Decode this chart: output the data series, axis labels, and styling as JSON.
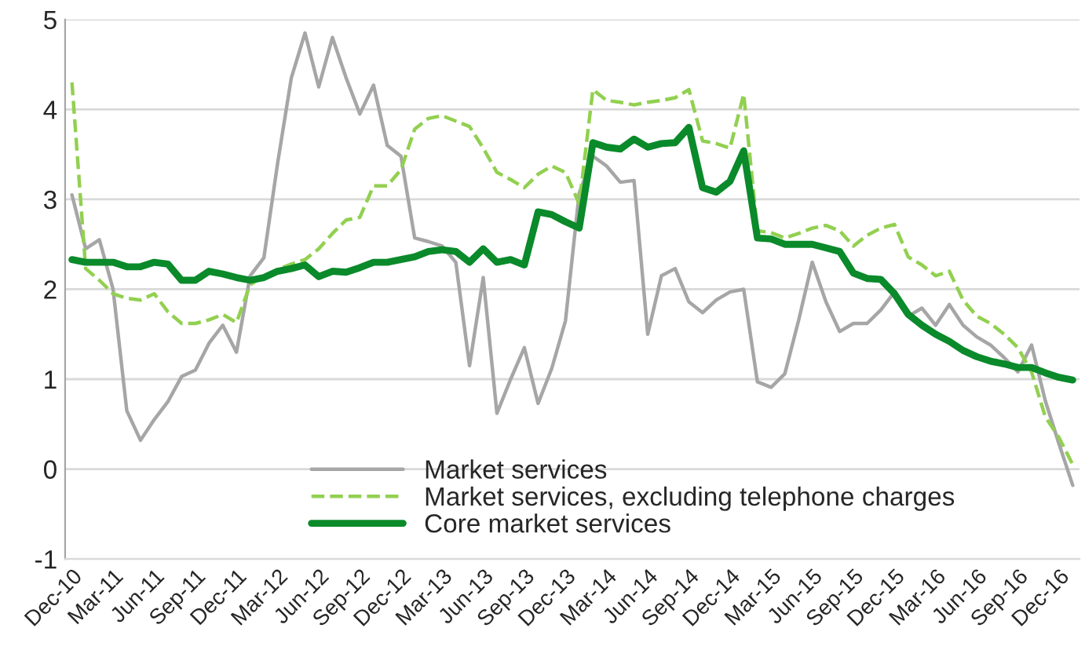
{
  "chart_data": {
    "type": "line",
    "categories": [
      "Dec-10",
      null,
      null,
      "Mar-11",
      null,
      null,
      "Jun-11",
      null,
      null,
      "Sep-11",
      null,
      null,
      "Dec-11",
      null,
      null,
      "Mar-12",
      null,
      null,
      "Jun-12",
      null,
      null,
      "Sep-12",
      null,
      null,
      "Dec-12",
      null,
      null,
      "Mar-13",
      null,
      null,
      "Jun-13",
      null,
      null,
      "Sep-13",
      null,
      null,
      "Dec-13",
      null,
      null,
      "Mar-14",
      null,
      null,
      "Jun-14",
      null,
      null,
      "Sep-14",
      null,
      null,
      "Dec-14",
      null,
      null,
      "Mar-15",
      null,
      null,
      "Jun-15",
      null,
      null,
      "Sep-15",
      null,
      null,
      "Dec-15",
      null,
      null,
      "Mar-16",
      null,
      null,
      "Jun-16",
      null,
      null,
      "Sep-16",
      null,
      null,
      "Dec-16",
      null
    ],
    "series": [
      {
        "name": "Market services",
        "color": "#a6a6a6",
        "line_style": "solid",
        "values": [
          3.05,
          2.45,
          2.55,
          2.0,
          0.65,
          0.32,
          0.55,
          0.75,
          1.03,
          1.1,
          1.4,
          1.6,
          1.3,
          2.15,
          2.35,
          3.4,
          4.35,
          4.85,
          4.25,
          4.8,
          4.35,
          3.95,
          4.27,
          3.6,
          3.48,
          2.57,
          2.53,
          2.48,
          2.3,
          1.15,
          2.13,
          0.62,
          1.0,
          1.35,
          0.73,
          1.12,
          1.65,
          3.07,
          3.48,
          3.37,
          3.19,
          3.21,
          1.5,
          2.15,
          2.23,
          1.86,
          1.74,
          1.88,
          1.97,
          2.0,
          0.97,
          0.91,
          1.06,
          1.65,
          2.3,
          1.86,
          1.53,
          1.62,
          1.62,
          1.77,
          1.97,
          1.7,
          1.79,
          1.6,
          1.83,
          1.6,
          1.47,
          1.38,
          1.24,
          1.08,
          1.38,
          0.76,
          0.28,
          -0.18
        ]
      },
      {
        "name": "Market services, excluding telephone charges",
        "color": "#92d050",
        "line_style": "dashed",
        "values": [
          4.3,
          2.23,
          2.1,
          1.95,
          1.9,
          1.88,
          1.95,
          1.75,
          1.62,
          1.62,
          1.66,
          1.72,
          1.63,
          2.05,
          2.15,
          2.22,
          2.28,
          2.33,
          2.45,
          2.62,
          2.77,
          2.8,
          3.15,
          3.15,
          3.33,
          3.78,
          3.9,
          3.93,
          3.87,
          3.81,
          3.57,
          3.3,
          3.22,
          3.13,
          3.28,
          3.37,
          3.3,
          2.95,
          4.22,
          4.1,
          4.08,
          4.05,
          4.08,
          4.1,
          4.13,
          4.22,
          3.65,
          3.62,
          3.57,
          4.17,
          2.65,
          2.63,
          2.57,
          2.62,
          2.68,
          2.71,
          2.65,
          2.48,
          2.6,
          2.68,
          2.72,
          2.36,
          2.27,
          2.15,
          2.2,
          1.88,
          1.7,
          1.62,
          1.5,
          1.35,
          1.08,
          0.58,
          0.35,
          0.05
        ]
      },
      {
        "name": "Core market services",
        "color": "#0a8a2a",
        "line_style": "solid",
        "values": [
          2.33,
          2.3,
          2.3,
          2.3,
          2.25,
          2.25,
          2.3,
          2.28,
          2.1,
          2.1,
          2.2,
          2.17,
          2.13,
          2.1,
          2.13,
          2.2,
          2.23,
          2.27,
          2.14,
          2.2,
          2.19,
          2.24,
          2.3,
          2.3,
          2.33,
          2.36,
          2.42,
          2.44,
          2.42,
          2.3,
          2.45,
          2.3,
          2.33,
          2.27,
          2.86,
          2.83,
          2.75,
          2.68,
          3.63,
          3.58,
          3.56,
          3.67,
          3.58,
          3.62,
          3.63,
          3.8,
          3.13,
          3.08,
          3.2,
          3.54,
          2.57,
          2.56,
          2.5,
          2.5,
          2.5,
          2.46,
          2.42,
          2.18,
          2.12,
          2.11,
          1.95,
          1.72,
          1.6,
          1.5,
          1.42,
          1.32,
          1.25,
          1.2,
          1.17,
          1.13,
          1.13,
          1.07,
          1.02,
          0.99
        ]
      }
    ],
    "ylim": [
      -1,
      5
    ],
    "yticks": [
      -1,
      0,
      1,
      2,
      3,
      4,
      5
    ],
    "grid": "y",
    "legend": "bottom",
    "marker": "none"
  }
}
